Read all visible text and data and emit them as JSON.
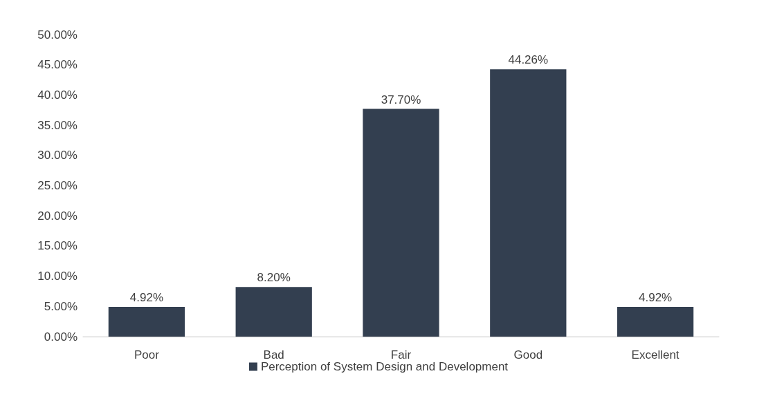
{
  "chart_data": {
    "type": "bar",
    "categories": [
      "Poor",
      "Bad",
      "Fair",
      "Good",
      "Excellent"
    ],
    "series": [
      {
        "name": "Perception of System Design and Development",
        "color": "#333f50",
        "values": [
          4.92,
          8.2,
          37.7,
          44.26,
          4.92
        ],
        "value_labels": [
          "4.92%",
          "8.20%",
          "37.70%",
          "44.26%",
          "4.92%"
        ]
      }
    ],
    "ylim": [
      0,
      50
    ],
    "yticks": [
      {
        "value": 0,
        "label": "0.00%"
      },
      {
        "value": 5,
        "label": "5.00%"
      },
      {
        "value": 10,
        "label": "10.00%"
      },
      {
        "value": 15,
        "label": "15.00%"
      },
      {
        "value": 20,
        "label": "20.00%"
      },
      {
        "value": 25,
        "label": "25.00%"
      },
      {
        "value": 30,
        "label": "30.00%"
      },
      {
        "value": 35,
        "label": "35.00%"
      },
      {
        "value": 40,
        "label": "40.00%"
      },
      {
        "value": 45,
        "label": "45.00%"
      },
      {
        "value": 50,
        "label": "50.00%"
      }
    ],
    "grid": false,
    "legend": "bottom"
  }
}
